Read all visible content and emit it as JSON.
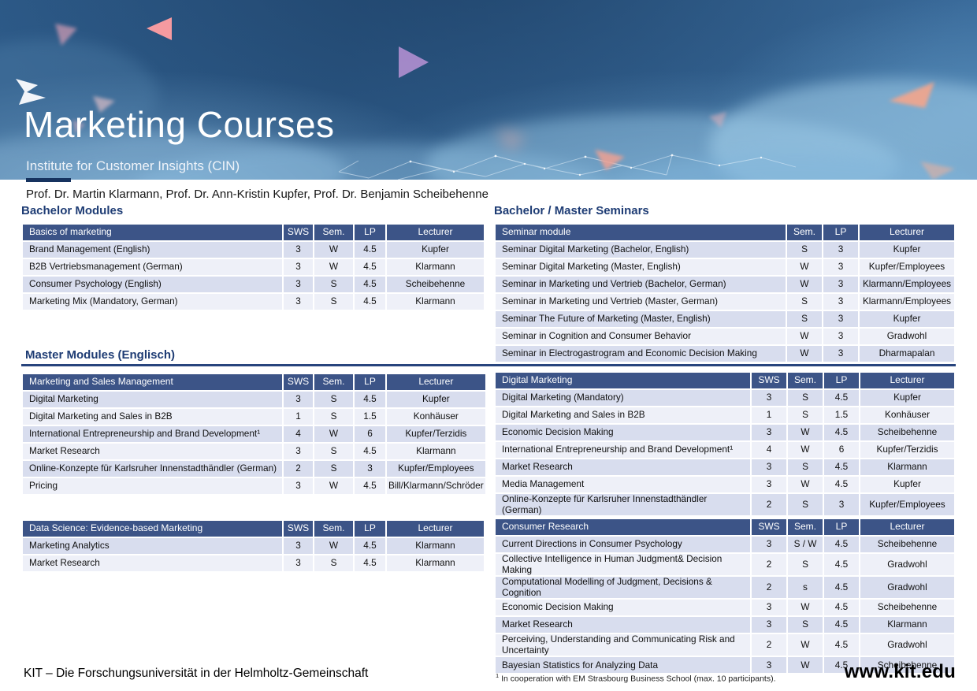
{
  "header": {
    "title": "Marketing Courses",
    "subtitle": "Institute for Customer Insights (CIN)",
    "professors": "Prof. Dr. Martin Klarmann, Prof. Dr. Ann-Kristin Kupfer, Prof. Dr. Benjamin Scheibehenne"
  },
  "sections": {
    "bachelor_modules": "Bachelor Modules",
    "bachelor_master_seminars": "Bachelor / Master Seminars",
    "master_modules": "Master Modules (Englisch)"
  },
  "tables": [
    {
      "id": "bachelor-modules",
      "title": "Basics of marketing",
      "columns": [
        "SWS",
        "Sem.",
        "LP",
        "Lecturer"
      ],
      "rows": [
        [
          "Brand Management (English)",
          "3",
          "W",
          "4.5",
          "Kupfer"
        ],
        [
          "B2B Vertriebsmanagement (German)",
          "3",
          "W",
          "4.5",
          "Klarmann"
        ],
        [
          "Consumer Psychology (English)",
          "3",
          "S",
          "4.5",
          "Scheibehenne"
        ],
        [
          "Marketing Mix (Mandatory, German)",
          "3",
          "S",
          "4.5",
          "Klarmann"
        ]
      ]
    },
    {
      "id": "bachelor-master-seminars",
      "title": "Seminar module",
      "columns": [
        "Sem.",
        "LP",
        "Lecturer"
      ],
      "rows": [
        [
          "Seminar Digital Marketing (Bachelor, English)",
          "S",
          "3",
          "Kupfer"
        ],
        [
          "Seminar Digital Marketing (Master, English)",
          "W",
          "3",
          "Kupfer/Employees"
        ],
        [
          "Seminar in Marketing und Vertrieb (Bachelor, German)",
          "W",
          "3",
          "Klarmann/Employees"
        ],
        [
          "Seminar in Marketing und Vertrieb (Master, German)",
          "S",
          "3",
          "Klarmann/Employees"
        ],
        [
          "Seminar The Future of Marketing (Master, English)",
          "S",
          "3",
          "Kupfer"
        ],
        [
          "Seminar in Cognition and Consumer Behavior",
          "W",
          "3",
          "Gradwohl"
        ],
        [
          "Seminar in Electrogastrogram and Economic Decision Making",
          "W",
          "3",
          "Dharmapalan"
        ]
      ]
    },
    {
      "id": "marketing-and-sales-management",
      "title": "Marketing and Sales Management",
      "columns": [
        "SWS",
        "Sem.",
        "LP",
        "Lecturer"
      ],
      "rows": [
        [
          "Digital Marketing",
          "3",
          "S",
          "4.5",
          "Kupfer"
        ],
        [
          "Digital Marketing and Sales in B2B",
          "1",
          "S",
          "1.5",
          "Konhäuser"
        ],
        [
          "International Entrepreneurship and Brand Development¹",
          "4",
          "W",
          "6",
          "Kupfer/Terzidis"
        ],
        [
          "Market Research",
          "3",
          "S",
          "4.5",
          "Klarmann"
        ],
        [
          "Online-Konzepte für Karlsruher Innenstadthändler (German)",
          "2",
          "S",
          "3",
          "Kupfer/Employees"
        ],
        [
          "Pricing",
          "3",
          "W",
          "4.5",
          "Bill/Klarmann/Schröder"
        ]
      ]
    },
    {
      "id": "digital-marketing",
      "title": "Digital Marketing",
      "columns": [
        "SWS",
        "Sem.",
        "LP",
        "Lecturer"
      ],
      "rows": [
        [
          "Digital Marketing (Mandatory)",
          "3",
          "S",
          "4.5",
          "Kupfer"
        ],
        [
          "Digital Marketing and Sales in B2B",
          "1",
          "S",
          "1.5",
          "Konhäuser"
        ],
        [
          "Economic Decision Making",
          "3",
          "W",
          "4.5",
          "Scheibehenne"
        ],
        [
          "International Entrepreneurship and Brand Development¹",
          "4",
          "W",
          "6",
          "Kupfer/Terzidis"
        ],
        [
          "Market Research",
          "3",
          "S",
          "4.5",
          "Klarmann"
        ],
        [
          "Media Management",
          "3",
          "W",
          "4.5",
          "Kupfer"
        ],
        [
          "Online-Konzepte für Karlsruher Innenstadthändler (German)",
          "2",
          "S",
          "3",
          "Kupfer/Employees"
        ]
      ]
    },
    {
      "id": "data-science-evidence-based-marketing",
      "title": "Data Science: Evidence-based Marketing",
      "columns": [
        "SWS",
        "Sem.",
        "LP",
        "Lecturer"
      ],
      "rows": [
        [
          "Marketing Analytics",
          "3",
          "W",
          "4.5",
          "Klarmann"
        ],
        [
          "Market Research",
          "3",
          "S",
          "4.5",
          "Klarmann"
        ]
      ]
    },
    {
      "id": "consumer-research",
      "title": "Consumer Research",
      "columns": [
        "SWS",
        "Sem.",
        "LP",
        "Lecturer"
      ],
      "rows": [
        [
          "Current Directions in Consumer Psychology",
          "3",
          "S / W",
          "4.5",
          "Scheibehenne"
        ],
        [
          "Collective Intelligence in Human Judgment& Decision Making",
          "2",
          "S",
          "4.5",
          "Gradwohl"
        ],
        [
          "Computational Modelling of Judgment, Decisions & Cognition",
          "2",
          "s",
          "4.5",
          "Gradwohl"
        ],
        [
          "Economic Decision Making",
          "3",
          "W",
          "4.5",
          "Scheibehenne"
        ],
        [
          "Market Research",
          "3",
          "S",
          "4.5",
          "Klarmann"
        ],
        [
          "Perceiving, Understanding and Communicating Risk and Uncertainty",
          "2",
          "W",
          "4.5",
          "Gradwohl"
        ],
        [
          "Bayesian Statistics for Analyzing Data",
          "3",
          "W",
          "4.5",
          "Scheibehenne"
        ]
      ]
    }
  ],
  "footnote": {
    "marker": "1",
    "text": "In cooperation with EM Strasbourg Business School (max. 10 participants)."
  },
  "footer": {
    "left": "KIT – Die Forschungsuniversität in der Helmholtz-Gemeinschaft",
    "website": "www.kit.edu"
  },
  "colors": {
    "table_header_bg": "#3c5487",
    "row_alt_dark": "#d8ddee",
    "row_alt_light": "#eef0f8",
    "section_heading": "#1e3c74",
    "divider": "#27447d",
    "hero_base_blue": "#2d5a88",
    "accent_pink": "#f59aa0"
  }
}
